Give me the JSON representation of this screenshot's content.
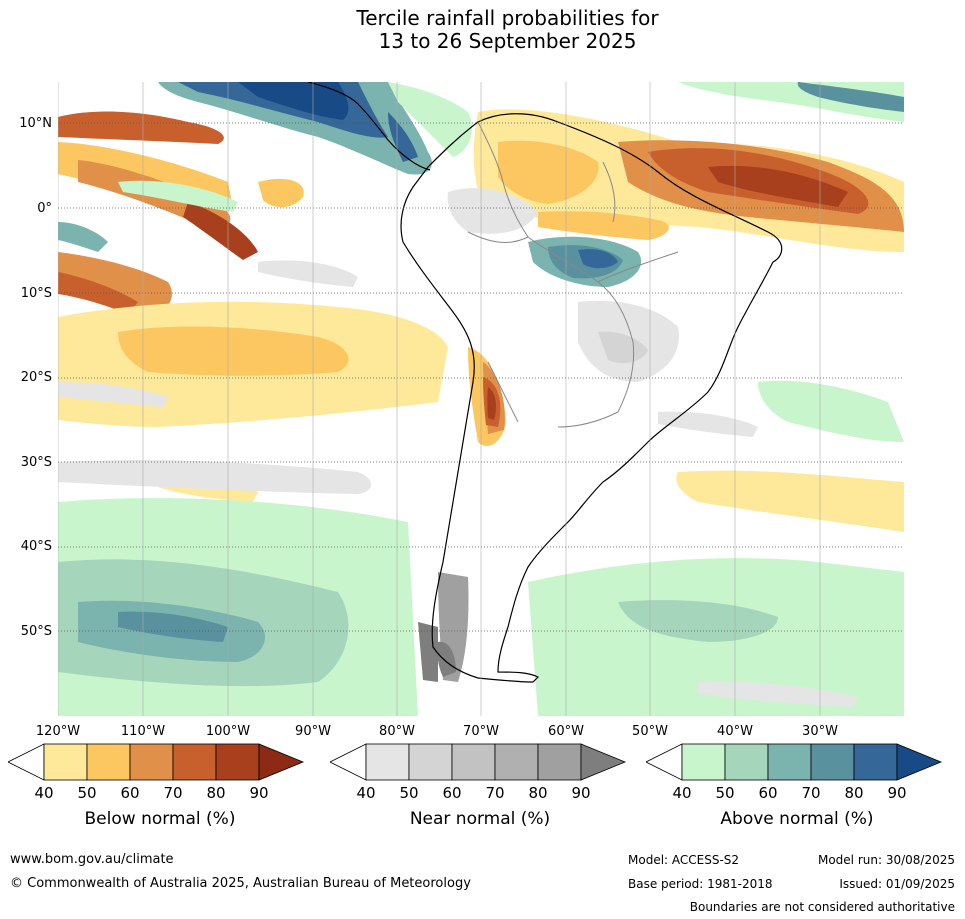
{
  "header": {
    "title_line1": "Tercile rainfall probabilities for",
    "title_line2": "13 to 26 September 2025"
  },
  "map": {
    "lat_labels": [
      "10°N",
      "0°",
      "10°S",
      "20°S",
      "30°S",
      "40°S",
      "50°S"
    ],
    "lon_labels": [
      "120°W",
      "110°W",
      "100°W",
      "90°W",
      "80°W",
      "70°W",
      "60°W",
      "50°W",
      "40°W",
      "30°W"
    ]
  },
  "colorbars": [
    {
      "title": "Below normal (%)",
      "ticks": [
        "40",
        "50",
        "60",
        "70",
        "80",
        "90"
      ],
      "colors": [
        "#fee99a",
        "#fcc760",
        "#e09048",
        "#c8602e",
        "#a8401e",
        "#8c2a14"
      ]
    },
    {
      "title": "Near normal (%)",
      "ticks": [
        "40",
        "50",
        "60",
        "70",
        "80",
        "90"
      ],
      "colors": [
        "#e5e5e5",
        "#d4d4d4",
        "#c2c2c2",
        "#b0b0b0",
        "#a0a0a0",
        "#7e7e7e"
      ]
    },
    {
      "title": "Above normal (%)",
      "ticks": [
        "40",
        "50",
        "60",
        "70",
        "80",
        "90"
      ],
      "colors": [
        "#c8f5cc",
        "#a5d6bc",
        "#7bb4ae",
        "#5a919e",
        "#356898",
        "#184a86"
      ]
    }
  ],
  "footer": {
    "website": "www.bom.gov.au/climate",
    "copyright": "© Commonwealth of Australia 2025, Australian Bureau of Meteorology",
    "model": "Model: ACCESS-S2",
    "base_period": "Base period: 1981-2018",
    "model_run": "Model run: 30/08/2025",
    "issued": "Issued: 01/09/2025",
    "disclaimer": "Boundaries are not considered authoritative"
  }
}
